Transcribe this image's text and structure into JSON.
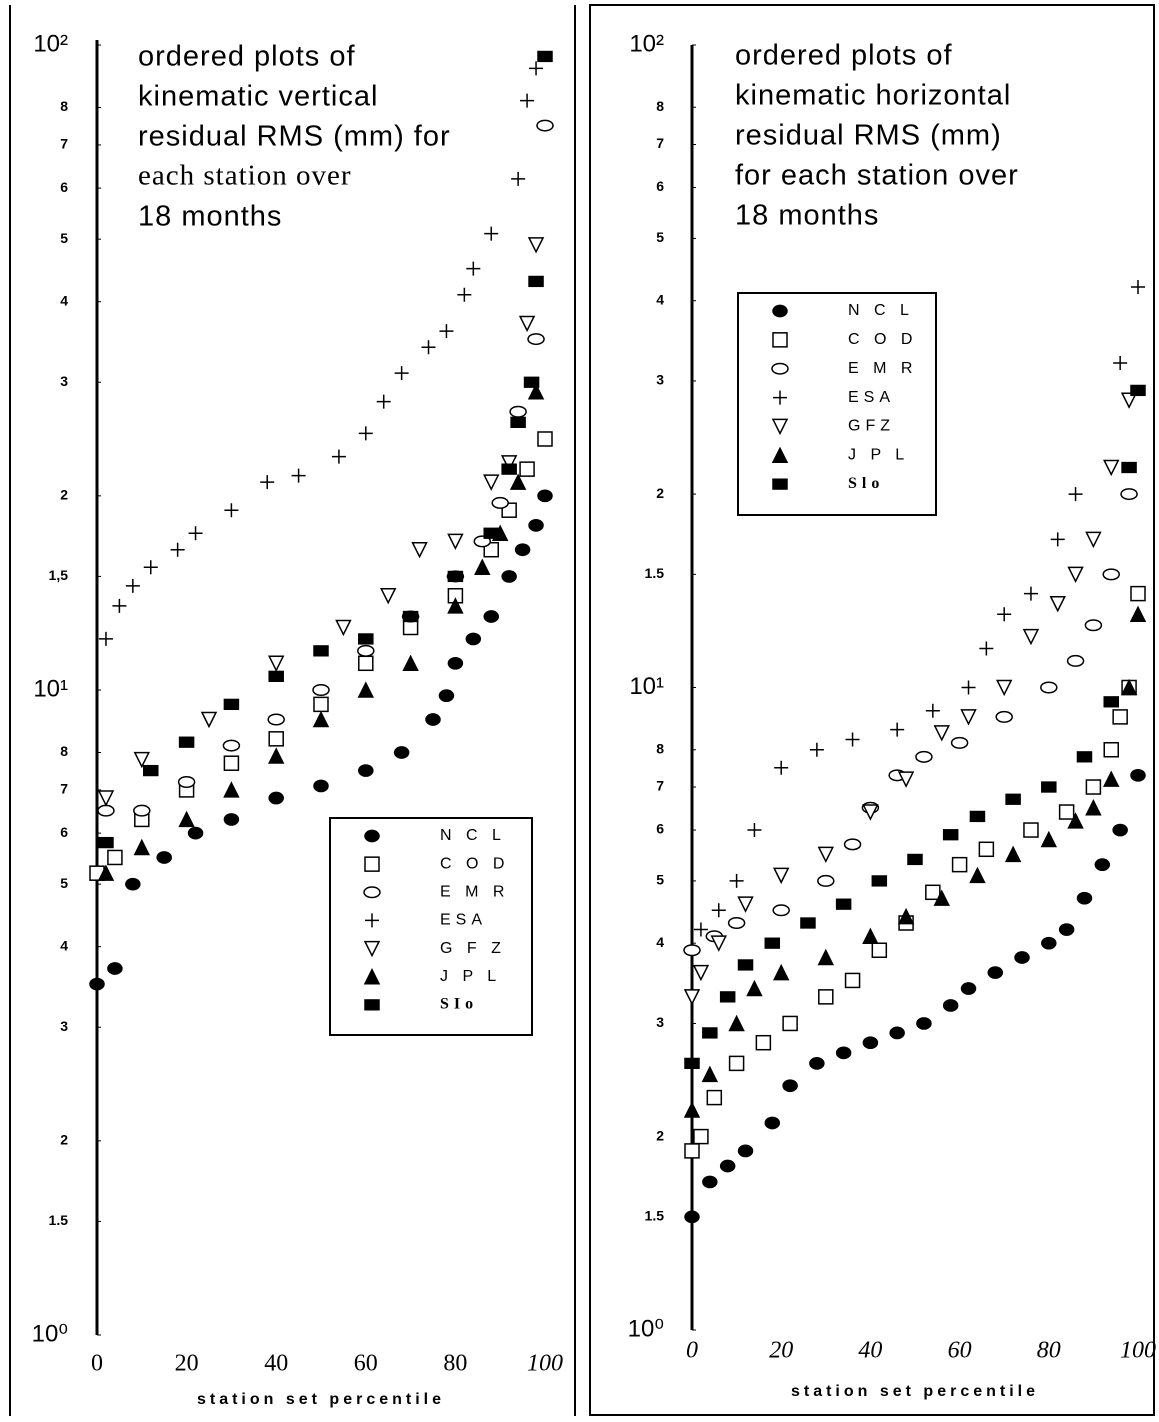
{
  "chart_data": [
    {
      "type": "scatter",
      "title": [
        "ordered plots of",
        "kinematic  vertical",
        "residual  RMS  (mm)  for",
        "each station  over",
        "18  months"
      ],
      "xlabel": "station  set  percentile",
      "xlim": [
        0,
        100
      ],
      "xticks": [
        0,
        20,
        40,
        60,
        80,
        100
      ],
      "ylim": [
        1,
        100
      ],
      "log_y": true,
      "yticks": [
        {
          "value": 1,
          "label": "10⁰"
        },
        1.5,
        2,
        3,
        4,
        5,
        6,
        7,
        8,
        {
          "value": 10,
          "label": "10¹"
        },
        {
          "value": 15,
          "label": "1,5"
        },
        {
          "value": 20,
          "label": "2"
        },
        {
          "value": 30,
          "label": "3"
        },
        {
          "value": 40,
          "label": "4"
        },
        {
          "value": 50,
          "label": "5"
        },
        {
          "value": 60,
          "label": "6"
        },
        {
          "value": 70,
          "label": "7"
        },
        {
          "value": 80,
          "label": "8"
        },
        {
          "value": 100,
          "label": "10²"
        }
      ],
      "legend": "lower right",
      "series": [
        {
          "name": "N C L",
          "marker": "filled-circle",
          "color": "#000000",
          "x": [
            0,
            4,
            8,
            15,
            22,
            30,
            40,
            50,
            60,
            68,
            75,
            78,
            80,
            84,
            88,
            92,
            95,
            98,
            100
          ],
          "values": [
            3.5,
            3.7,
            5,
            5.5,
            6,
            6.3,
            6.8,
            7.1,
            7.5,
            8,
            9,
            9.8,
            11,
            12,
            13,
            15,
            16.5,
            18,
            20
          ]
        },
        {
          "name": "C O D",
          "marker": "open-square",
          "color": "#000000",
          "x": [
            0,
            4,
            10,
            20,
            30,
            40,
            50,
            60,
            70,
            80,
            88,
            92,
            96,
            100
          ],
          "values": [
            5.2,
            5.5,
            6.3,
            7,
            7.7,
            8.4,
            9.5,
            11,
            12.5,
            14,
            16.5,
            19,
            22,
            24.5
          ]
        },
        {
          "name": "E M R",
          "marker": "open-circle",
          "color": "#000000",
          "x": [
            2,
            10,
            20,
            30,
            40,
            50,
            60,
            70,
            80,
            86,
            90,
            94,
            98,
            100
          ],
          "values": [
            6.5,
            6.5,
            7.2,
            8.2,
            9,
            10,
            11.5,
            13,
            15,
            17,
            19.5,
            27,
            35,
            75
          ]
        },
        {
          "name": "ESA",
          "marker": "plus",
          "color": "#000000",
          "x": [
            2,
            5,
            8,
            12,
            18,
            22,
            30,
            38,
            45,
            54,
            60,
            64,
            68,
            74,
            78,
            82,
            84,
            88,
            94,
            96,
            98
          ],
          "values": [
            12,
            13.5,
            14.5,
            15.5,
            16.5,
            17.5,
            19,
            21,
            21.5,
            23,
            25,
            28,
            31,
            34,
            36,
            41,
            45,
            51,
            62,
            82,
            92
          ]
        },
        {
          "name": "G F Z",
          "marker": "open-triangle-down",
          "color": "#000000",
          "x": [
            2,
            10,
            25,
            40,
            55,
            65,
            72,
            80,
            88,
            92,
            96,
            98
          ],
          "values": [
            6.8,
            7.8,
            9,
            11,
            12.5,
            14,
            16.5,
            17,
            21,
            22.5,
            37,
            49
          ]
        },
        {
          "name": "J P L",
          "marker": "filled-triangle-up",
          "color": "#000000",
          "x": [
            2,
            10,
            20,
            30,
            40,
            50,
            60,
            70,
            80,
            86,
            90,
            94,
            98
          ],
          "values": [
            5.2,
            5.7,
            6.3,
            7,
            7.9,
            9,
            10,
            11,
            13.5,
            15.5,
            17.5,
            21,
            29
          ]
        },
        {
          "name": "SIo",
          "marker": "filled-square",
          "color": "#000000",
          "x": [
            2,
            12,
            20,
            30,
            40,
            50,
            60,
            70,
            80,
            88,
            92,
            94,
            97,
            98,
            100
          ],
          "values": [
            5.8,
            7.5,
            8.3,
            9.5,
            10.5,
            11.5,
            12,
            13,
            15,
            17.5,
            22,
            26,
            30,
            43,
            96
          ]
        }
      ]
    },
    {
      "type": "scatter",
      "title": [
        "ordered plots of",
        "kinematic  horizontal",
        "residual  RMS  (mm)",
        "for  each  station  over",
        "18  months"
      ],
      "xlabel": "station  set  percentile",
      "xlim": [
        0,
        100
      ],
      "xticks": [
        0,
        20,
        40,
        60,
        80,
        100
      ],
      "ylim": [
        1,
        100
      ],
      "log_y": true,
      "yticks": [
        {
          "value": 1,
          "label": "10⁰"
        },
        1.5,
        2,
        3,
        4,
        5,
        6,
        7,
        8,
        {
          "value": 10,
          "label": "10¹"
        },
        {
          "value": 15,
          "label": "1.5"
        },
        {
          "value": 20,
          "label": "2"
        },
        {
          "value": 30,
          "label": "3"
        },
        {
          "value": 40,
          "label": "4"
        },
        {
          "value": 50,
          "label": "5"
        },
        {
          "value": 60,
          "label": "6"
        },
        {
          "value": 70,
          "label": "7"
        },
        {
          "value": 80,
          "label": "8"
        },
        {
          "value": 100,
          "label": "10²"
        }
      ],
      "legend": "upper left",
      "series": [
        {
          "name": "N C L",
          "marker": "filled-circle",
          "color": "#000000",
          "x": [
            0,
            4,
            8,
            12,
            18,
            22,
            28,
            34,
            40,
            46,
            52,
            58,
            62,
            68,
            74,
            80,
            84,
            88,
            92,
            96,
            100
          ],
          "values": [
            1.5,
            1.7,
            1.8,
            1.9,
            2.1,
            2.4,
            2.6,
            2.7,
            2.8,
            2.9,
            3.0,
            3.2,
            3.4,
            3.6,
            3.8,
            4.0,
            4.2,
            4.7,
            5.3,
            6,
            7.3
          ]
        },
        {
          "name": "C O D",
          "marker": "open-square",
          "color": "#000000",
          "x": [
            0,
            2,
            5,
            10,
            16,
            22,
            30,
            36,
            42,
            48,
            54,
            60,
            66,
            76,
            84,
            90,
            94,
            96,
            98,
            100
          ],
          "values": [
            1.9,
            2.0,
            2.3,
            2.6,
            2.8,
            3.0,
            3.3,
            3.5,
            3.9,
            4.3,
            4.8,
            5.3,
            5.6,
            6.0,
            6.4,
            7,
            8,
            9,
            10,
            14
          ]
        },
        {
          "name": "E M R",
          "marker": "open-circle",
          "color": "#000000",
          "x": [
            0,
            5,
            10,
            20,
            30,
            36,
            40,
            46,
            52,
            60,
            70,
            80,
            86,
            90,
            94,
            98
          ],
          "values": [
            3.9,
            4.1,
            4.3,
            4.5,
            5,
            5.7,
            6.5,
            7.3,
            7.8,
            8.2,
            9,
            10,
            11,
            12.5,
            15,
            20
          ]
        },
        {
          "name": "ESA",
          "marker": "plus",
          "color": "#000000",
          "x": [
            2,
            6,
            10,
            14,
            20,
            28,
            36,
            46,
            54,
            62,
            66,
            70,
            76,
            82,
            86,
            96,
            100
          ],
          "values": [
            4.2,
            4.5,
            5,
            6,
            7.5,
            8,
            8.3,
            8.6,
            9.2,
            10,
            11.5,
            13,
            14,
            17,
            20,
            32,
            42
          ]
        },
        {
          "name": "GFZ",
          "marker": "open-triangle-down",
          "color": "#000000",
          "x": [
            0,
            2,
            6,
            12,
            20,
            30,
            40,
            48,
            56,
            62,
            70,
            76,
            82,
            86,
            90,
            94,
            98
          ],
          "values": [
            3.3,
            3.6,
            4.0,
            4.6,
            5.1,
            5.5,
            6.4,
            7.2,
            8.5,
            9,
            10,
            12,
            13.5,
            15,
            17,
            22,
            28
          ]
        },
        {
          "name": "J P L",
          "marker": "filled-triangle-up",
          "color": "#000000",
          "x": [
            0,
            4,
            10,
            14,
            20,
            30,
            40,
            48,
            56,
            64,
            72,
            80,
            86,
            90,
            94,
            98,
            100
          ],
          "values": [
            2.2,
            2.5,
            3,
            3.4,
            3.6,
            3.8,
            4.1,
            4.4,
            4.7,
            5.1,
            5.5,
            5.8,
            6.2,
            6.5,
            7.2,
            10,
            13
          ]
        },
        {
          "name": "Slo",
          "marker": "filled-square",
          "color": "#000000",
          "x": [
            0,
            4,
            8,
            12,
            18,
            26,
            34,
            42,
            50,
            58,
            64,
            72,
            80,
            88,
            94,
            98,
            100
          ],
          "values": [
            2.6,
            2.9,
            3.3,
            3.7,
            4,
            4.3,
            4.6,
            5,
            5.4,
            5.9,
            6.3,
            6.7,
            7,
            7.8,
            9.5,
            22,
            29
          ]
        }
      ]
    }
  ]
}
